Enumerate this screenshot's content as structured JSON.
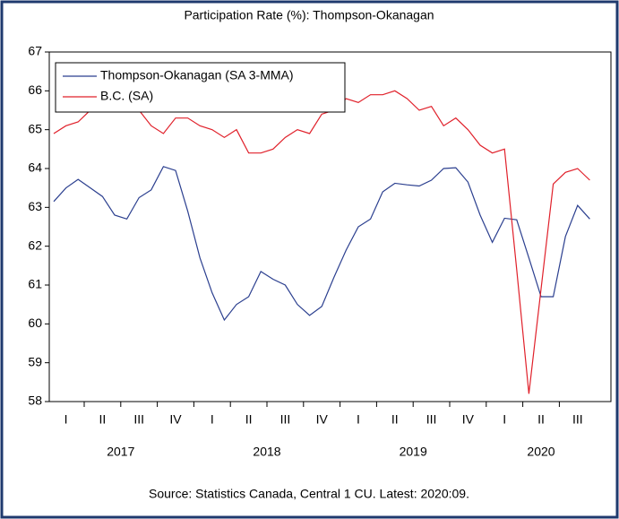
{
  "chart_data": {
    "type": "line",
    "title": "Participation Rate (%): Thompson-Okanagan",
    "quarter_labels": [
      "I",
      "II",
      "III",
      "IV",
      "I",
      "II",
      "III",
      "IV",
      "I",
      "II",
      "III",
      "IV",
      "I",
      "II",
      "III"
    ],
    "year_labels": [
      "2017",
      "2018",
      "2019",
      "2020"
    ],
    "series": [
      {
        "name": "Thompson-Okanagan (SA 3-MMA)",
        "color": "#2b3f8f",
        "values": [
          63.15,
          63.5,
          63.72,
          63.5,
          63.28,
          62.8,
          62.7,
          63.25,
          63.45,
          64.05,
          63.95,
          62.9,
          61.7,
          60.8,
          60.1,
          60.5,
          60.7,
          61.35,
          61.15,
          61.0,
          60.5,
          60.22,
          60.45,
          61.2,
          61.9,
          62.5,
          62.7,
          63.4,
          63.62,
          63.58,
          63.55,
          63.7,
          64.0,
          64.02,
          63.65,
          62.8,
          62.1,
          62.72,
          62.68,
          61.7,
          60.7,
          60.7,
          62.25,
          63.05,
          62.7
        ]
      },
      {
        "name": "B.C. (SA)",
        "color": "#e0202a",
        "values": [
          64.9,
          65.1,
          65.2,
          65.5,
          65.7,
          65.8,
          65.6,
          65.5,
          65.1,
          64.9,
          65.3,
          65.3,
          65.1,
          65.0,
          64.8,
          65.0,
          64.4,
          64.4,
          64.5,
          64.8,
          65.0,
          64.9,
          65.4,
          65.5,
          65.8,
          65.7,
          65.9,
          65.9,
          66.0,
          65.8,
          65.5,
          65.6,
          65.1,
          65.3,
          65.0,
          64.6,
          64.4,
          64.5,
          61.4,
          58.2,
          60.9,
          63.6,
          63.9,
          64.0,
          63.7
        ]
      }
    ],
    "ylim": [
      58,
      67
    ],
    "yticks": [
      58,
      59,
      60,
      61,
      62,
      63,
      64,
      65,
      66,
      67
    ],
    "source": "Source: Statistics Canada, Central 1 CU. Latest: 2020:09."
  }
}
